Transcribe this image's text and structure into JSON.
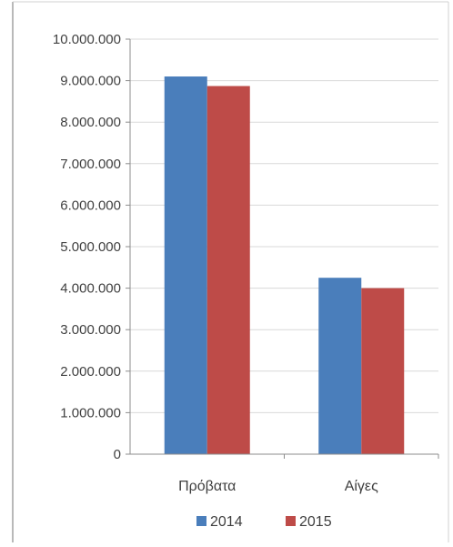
{
  "chart_data": {
    "type": "bar",
    "categories": [
      "Πρόβατα",
      "Αίγες"
    ],
    "series": [
      {
        "name": "2014",
        "values": [
          9100000,
          4250000
        ],
        "color": "#4a7ebb"
      },
      {
        "name": "2015",
        "values": [
          8870000,
          4000000
        ],
        "color": "#be4b48"
      }
    ],
    "y_ticks": [
      {
        "value": 0,
        "label": "0"
      },
      {
        "value": 1000000,
        "label": "1.000.000"
      },
      {
        "value": 2000000,
        "label": "2.000.000"
      },
      {
        "value": 3000000,
        "label": "3.000.000"
      },
      {
        "value": 4000000,
        "label": "4.000.000"
      },
      {
        "value": 5000000,
        "label": "5.000.000"
      },
      {
        "value": 6000000,
        "label": "6.000.000"
      },
      {
        "value": 7000000,
        "label": "7.000.000"
      },
      {
        "value": 8000000,
        "label": "8.000.000"
      },
      {
        "value": 9000000,
        "label": "9.000.000"
      },
      {
        "value": 10000000,
        "label": "10.000.000"
      }
    ],
    "ylim": [
      0,
      10000000
    ],
    "grid": true,
    "legend_position": "bottom",
    "frame_color": "#b9b9b9",
    "grid_color": "#d9d9d9"
  }
}
